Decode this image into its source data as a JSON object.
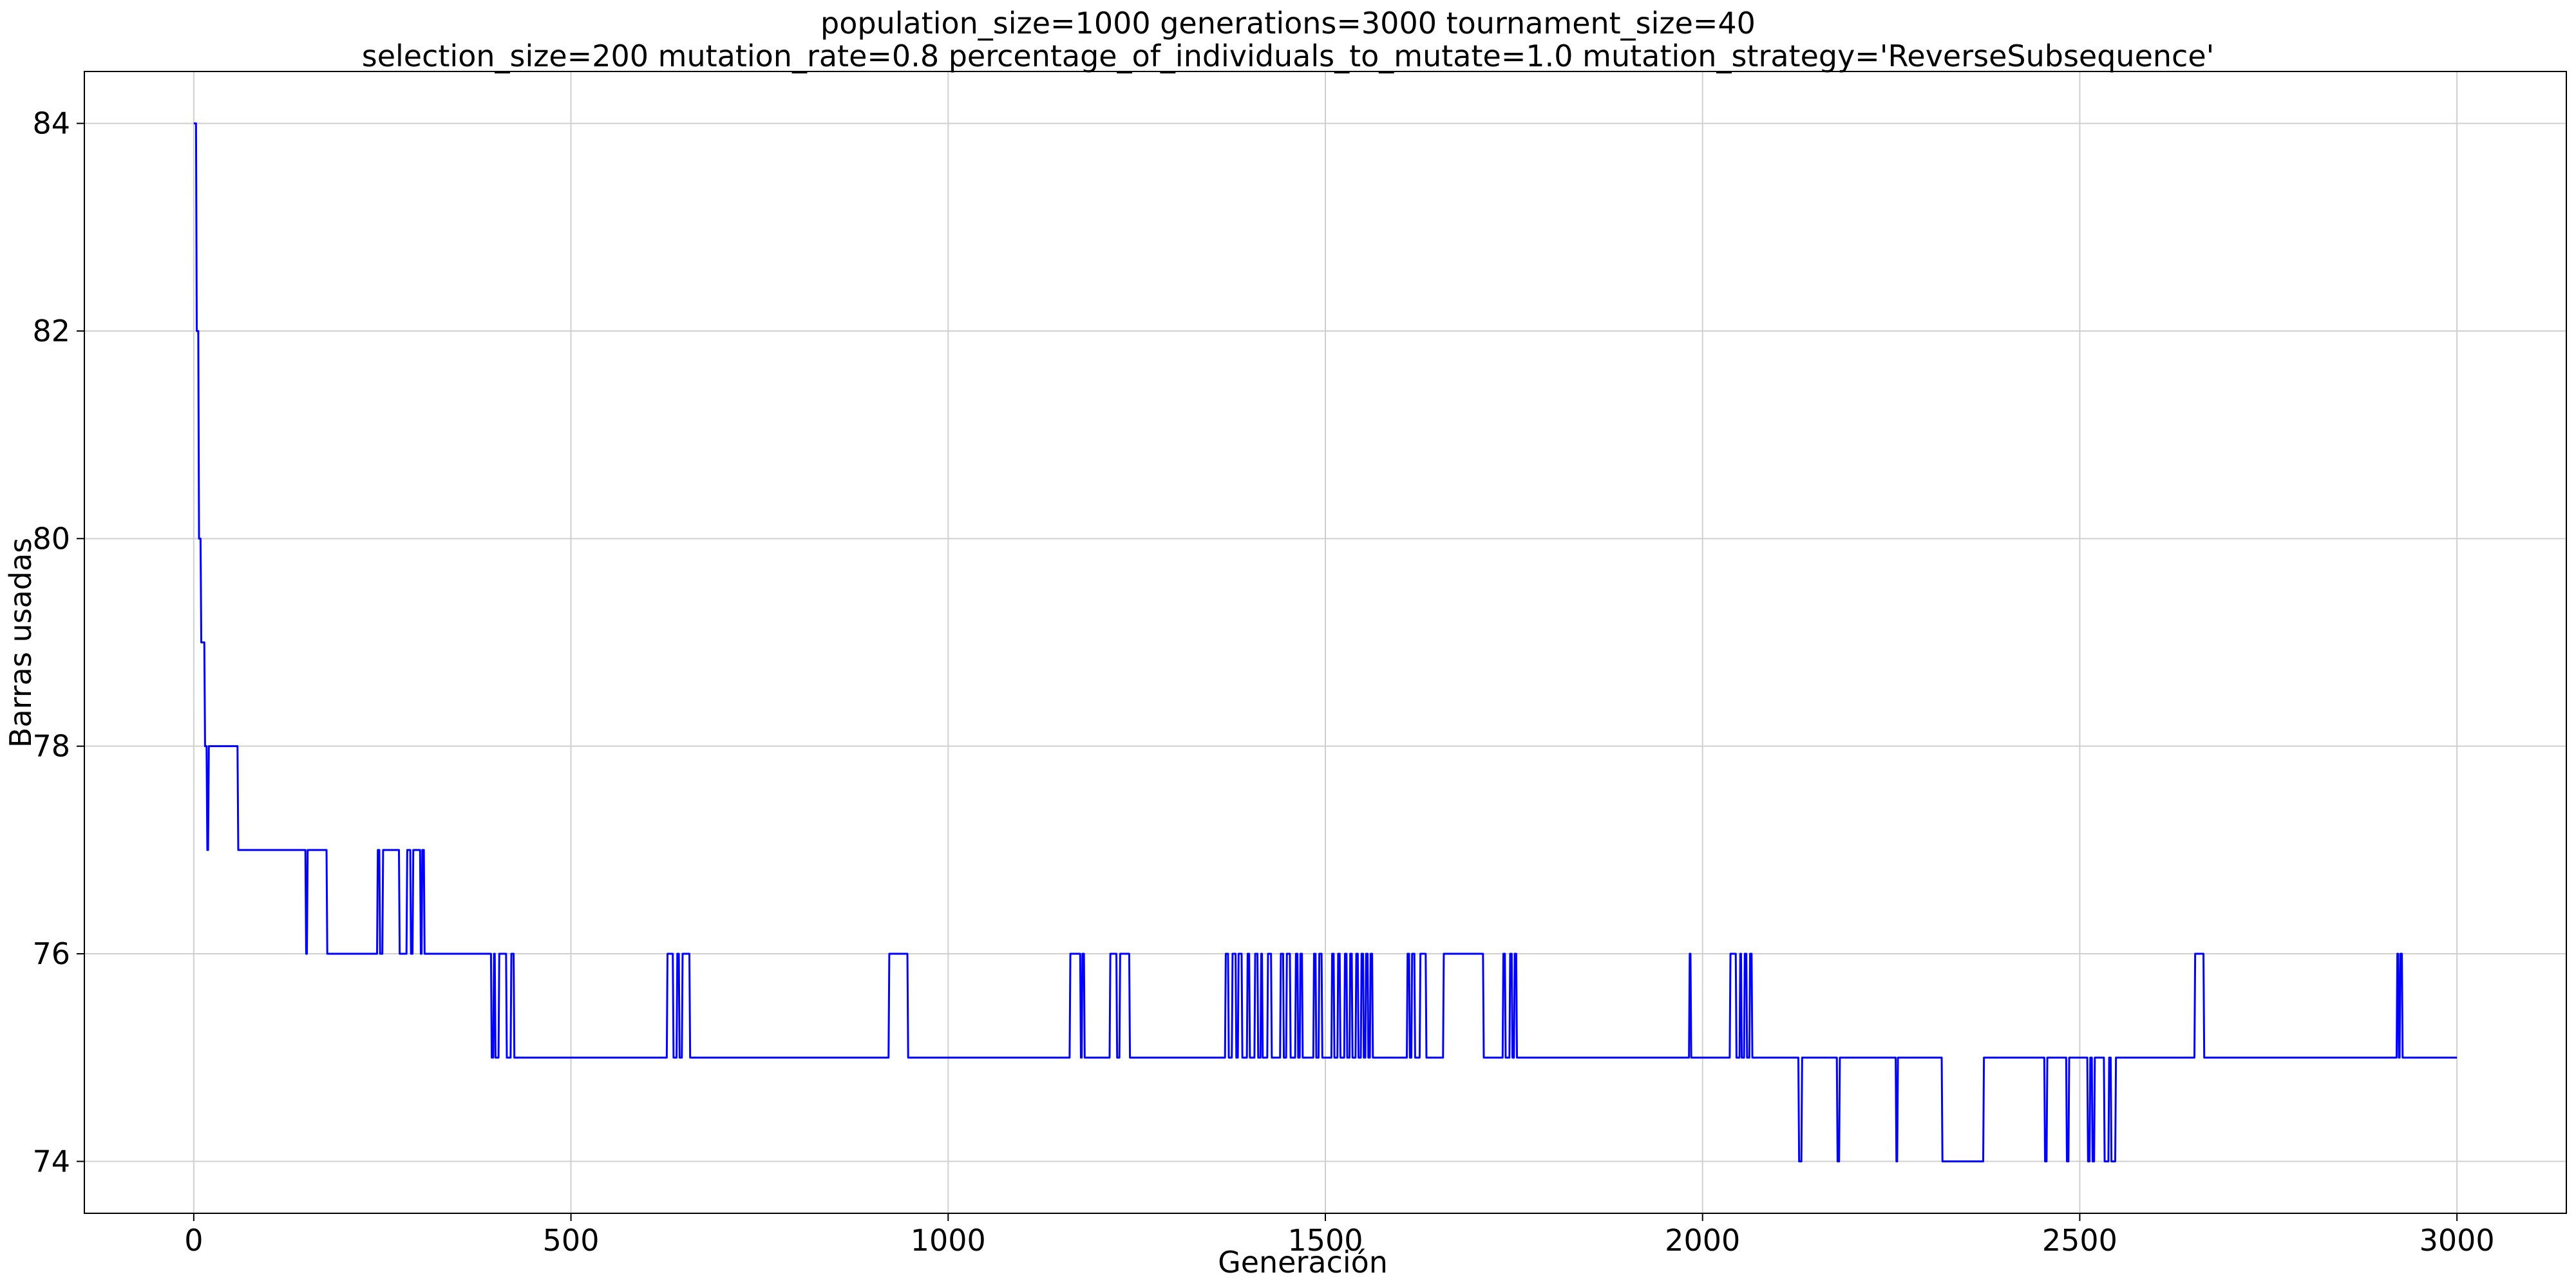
{
  "chart_data": {
    "type": "line",
    "title_lines": [
      "population_size=1000 generations=3000 tournament_size=40",
      "selection_size=200 mutation_rate=0.8 percentage_of_individuals_to_mutate=1.0 mutation_strategy='ReverseSubsequence'"
    ],
    "xlabel": "Generación",
    "ylabel": "Barras usadas",
    "xlim": [
      -145,
      3145
    ],
    "ylim": [
      73.5,
      84.5
    ],
    "xticks": [
      0,
      500,
      1000,
      1500,
      2000,
      2500,
      3000
    ],
    "yticks": [
      74,
      76,
      78,
      80,
      82,
      84
    ],
    "grid": true,
    "line_color": "#0000ff",
    "series": [
      {
        "points": [
          [
            0,
            84
          ],
          [
            3,
            84
          ],
          [
            4,
            82
          ],
          [
            6,
            82
          ],
          [
            7,
            80
          ],
          [
            9,
            80
          ],
          [
            10,
            79
          ],
          [
            14,
            79
          ],
          [
            15,
            78
          ],
          [
            17,
            78
          ],
          [
            18,
            77
          ],
          [
            19,
            77
          ],
          [
            20,
            78
          ],
          [
            58,
            78
          ],
          [
            59,
            77
          ],
          [
            148,
            77
          ],
          [
            149,
            76
          ],
          [
            150,
            76
          ],
          [
            151,
            77
          ],
          [
            176,
            77
          ],
          [
            177,
            76
          ],
          [
            243,
            76
          ],
          [
            244,
            77
          ],
          [
            246,
            77
          ],
          [
            247,
            76
          ],
          [
            250,
            76
          ],
          [
            251,
            77
          ],
          [
            272,
            77
          ],
          [
            273,
            76
          ],
          [
            282,
            76
          ],
          [
            283,
            77
          ],
          [
            287,
            77
          ],
          [
            288,
            76
          ],
          [
            290,
            76
          ],
          [
            291,
            77
          ],
          [
            300,
            77
          ],
          [
            301,
            76
          ],
          [
            302,
            76
          ],
          [
            303,
            77
          ],
          [
            305,
            77
          ],
          [
            306,
            76
          ],
          [
            394,
            76
          ],
          [
            395,
            75
          ],
          [
            397,
            75
          ],
          [
            398,
            76
          ],
          [
            399,
            76
          ],
          [
            400,
            75
          ],
          [
            404,
            75
          ],
          [
            405,
            76
          ],
          [
            414,
            76
          ],
          [
            415,
            75
          ],
          [
            420,
            75
          ],
          [
            421,
            76
          ],
          [
            424,
            76
          ],
          [
            425,
            75
          ],
          [
            627,
            75
          ],
          [
            628,
            76
          ],
          [
            635,
            76
          ],
          [
            636,
            75
          ],
          [
            640,
            75
          ],
          [
            641,
            76
          ],
          [
            643,
            76
          ],
          [
            644,
            75
          ],
          [
            647,
            75
          ],
          [
            648,
            76
          ],
          [
            657,
            76
          ],
          [
            658,
            75
          ],
          [
            921,
            75
          ],
          [
            922,
            76
          ],
          [
            946,
            76
          ],
          [
            947,
            75
          ],
          [
            1161,
            75
          ],
          [
            1162,
            76
          ],
          [
            1175,
            76
          ],
          [
            1176,
            75
          ],
          [
            1177,
            75
          ],
          [
            1178,
            76
          ],
          [
            1180,
            76
          ],
          [
            1181,
            75
          ],
          [
            1214,
            75
          ],
          [
            1215,
            76
          ],
          [
            1223,
            76
          ],
          [
            1224,
            75
          ],
          [
            1227,
            75
          ],
          [
            1228,
            76
          ],
          [
            1240,
            76
          ],
          [
            1241,
            75
          ],
          [
            1367,
            75
          ],
          [
            1368,
            76
          ],
          [
            1371,
            76
          ],
          [
            1372,
            75
          ],
          [
            1376,
            75
          ],
          [
            1377,
            76
          ],
          [
            1381,
            76
          ],
          [
            1382,
            75
          ],
          [
            1384,
            75
          ],
          [
            1385,
            76
          ],
          [
            1389,
            76
          ],
          [
            1390,
            75
          ],
          [
            1396,
            75
          ],
          [
            1397,
            76
          ],
          [
            1399,
            76
          ],
          [
            1400,
            75
          ],
          [
            1406,
            75
          ],
          [
            1407,
            76
          ],
          [
            1410,
            76
          ],
          [
            1411,
            75
          ],
          [
            1414,
            75
          ],
          [
            1415,
            76
          ],
          [
            1416,
            76
          ],
          [
            1417,
            75
          ],
          [
            1423,
            75
          ],
          [
            1424,
            76
          ],
          [
            1428,
            76
          ],
          [
            1429,
            75
          ],
          [
            1440,
            75
          ],
          [
            1441,
            76
          ],
          [
            1444,
            76
          ],
          [
            1445,
            75
          ],
          [
            1448,
            75
          ],
          [
            1449,
            76
          ],
          [
            1453,
            76
          ],
          [
            1454,
            75
          ],
          [
            1460,
            75
          ],
          [
            1461,
            76
          ],
          [
            1463,
            76
          ],
          [
            1464,
            75
          ],
          [
            1466,
            75
          ],
          [
            1467,
            76
          ],
          [
            1469,
            76
          ],
          [
            1470,
            75
          ],
          [
            1484,
            75
          ],
          [
            1485,
            76
          ],
          [
            1487,
            76
          ],
          [
            1488,
            75
          ],
          [
            1491,
            75
          ],
          [
            1492,
            76
          ],
          [
            1495,
            76
          ],
          [
            1496,
            75
          ],
          [
            1508,
            75
          ],
          [
            1509,
            76
          ],
          [
            1511,
            76
          ],
          [
            1512,
            75
          ],
          [
            1516,
            75
          ],
          [
            1517,
            76
          ],
          [
            1519,
            76
          ],
          [
            1520,
            75
          ],
          [
            1525,
            75
          ],
          [
            1526,
            76
          ],
          [
            1528,
            76
          ],
          [
            1529,
            75
          ],
          [
            1532,
            75
          ],
          [
            1533,
            76
          ],
          [
            1535,
            76
          ],
          [
            1536,
            75
          ],
          [
            1540,
            75
          ],
          [
            1541,
            76
          ],
          [
            1543,
            76
          ],
          [
            1544,
            75
          ],
          [
            1547,
            75
          ],
          [
            1548,
            76
          ],
          [
            1550,
            76
          ],
          [
            1551,
            75
          ],
          [
            1553,
            75
          ],
          [
            1554,
            76
          ],
          [
            1556,
            76
          ],
          [
            1557,
            75
          ],
          [
            1559,
            75
          ],
          [
            1560,
            76
          ],
          [
            1562,
            76
          ],
          [
            1563,
            75
          ],
          [
            1608,
            75
          ],
          [
            1609,
            76
          ],
          [
            1611,
            76
          ],
          [
            1612,
            75
          ],
          [
            1614,
            75
          ],
          [
            1615,
            76
          ],
          [
            1618,
            76
          ],
          [
            1619,
            75
          ],
          [
            1625,
            75
          ],
          [
            1626,
            76
          ],
          [
            1633,
            76
          ],
          [
            1634,
            75
          ],
          [
            1656,
            75
          ],
          [
            1657,
            76
          ],
          [
            1709,
            76
          ],
          [
            1710,
            75
          ],
          [
            1735,
            75
          ],
          [
            1736,
            76
          ],
          [
            1738,
            76
          ],
          [
            1739,
            75
          ],
          [
            1744,
            75
          ],
          [
            1745,
            76
          ],
          [
            1747,
            76
          ],
          [
            1748,
            75
          ],
          [
            1750,
            75
          ],
          [
            1751,
            76
          ],
          [
            1753,
            76
          ],
          [
            1754,
            75
          ],
          [
            1982,
            75
          ],
          [
            1983,
            76
          ],
          [
            1984,
            76
          ],
          [
            1985,
            75
          ],
          [
            2036,
            75
          ],
          [
            2037,
            76
          ],
          [
            2044,
            76
          ],
          [
            2045,
            75
          ],
          [
            2049,
            75
          ],
          [
            2050,
            76
          ],
          [
            2051,
            76
          ],
          [
            2052,
            75
          ],
          [
            2055,
            75
          ],
          [
            2056,
            76
          ],
          [
            2058,
            76
          ],
          [
            2059,
            75
          ],
          [
            2062,
            75
          ],
          [
            2063,
            76
          ],
          [
            2065,
            76
          ],
          [
            2066,
            75
          ],
          [
            2127,
            75
          ],
          [
            2128,
            74
          ],
          [
            2131,
            74
          ],
          [
            2132,
            75
          ],
          [
            2178,
            75
          ],
          [
            2179,
            74
          ],
          [
            2181,
            74
          ],
          [
            2182,
            75
          ],
          [
            2256,
            75
          ],
          [
            2257,
            74
          ],
          [
            2258,
            74
          ],
          [
            2259,
            75
          ],
          [
            2317,
            75
          ],
          [
            2318,
            74
          ],
          [
            2372,
            74
          ],
          [
            2373,
            75
          ],
          [
            2453,
            75
          ],
          [
            2454,
            74
          ],
          [
            2456,
            74
          ],
          [
            2457,
            75
          ],
          [
            2482,
            75
          ],
          [
            2483,
            74
          ],
          [
            2485,
            74
          ],
          [
            2486,
            75
          ],
          [
            2510,
            75
          ],
          [
            2511,
            74
          ],
          [
            2513,
            74
          ],
          [
            2514,
            75
          ],
          [
            2516,
            75
          ],
          [
            2517,
            74
          ],
          [
            2519,
            74
          ],
          [
            2520,
            75
          ],
          [
            2532,
            75
          ],
          [
            2533,
            74
          ],
          [
            2538,
            74
          ],
          [
            2539,
            75
          ],
          [
            2541,
            75
          ],
          [
            2542,
            74
          ],
          [
            2547,
            74
          ],
          [
            2548,
            75
          ],
          [
            2652,
            75
          ],
          [
            2653,
            76
          ],
          [
            2664,
            76
          ],
          [
            2665,
            75
          ],
          [
            2920,
            75
          ],
          [
            2921,
            76
          ],
          [
            2922,
            76
          ],
          [
            2923,
            75
          ],
          [
            2924,
            75
          ],
          [
            2925,
            76
          ],
          [
            2927,
            76
          ],
          [
            2928,
            75
          ],
          [
            3000,
            75
          ]
        ]
      }
    ]
  }
}
